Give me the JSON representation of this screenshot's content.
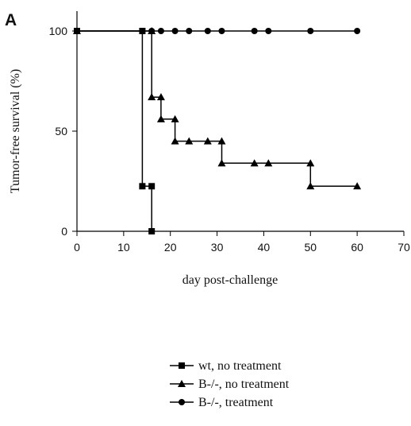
{
  "chart_data": {
    "type": "line",
    "step": true,
    "panel_label": "A",
    "title": "",
    "xlabel": "day post-challenge",
    "ylabel": "Tumor-free survival (%)",
    "xlim": [
      0,
      70
    ],
    "ylim": [
      0,
      100
    ],
    "xticks": [
      0,
      10,
      20,
      30,
      40,
      50,
      60,
      70
    ],
    "yticks": [
      0,
      50,
      100
    ],
    "grid": false,
    "legend_position": "bottom-center",
    "series": [
      {
        "name": "wt, no treatment",
        "marker": "square",
        "color": "#000000",
        "points": [
          [
            0,
            100
          ],
          [
            14,
            100
          ],
          [
            14,
            22.5
          ],
          [
            16,
            22.5
          ],
          [
            16,
            0
          ]
        ]
      },
      {
        "name": "B-/-, no treatment",
        "marker": "triangle",
        "color": "#000000",
        "points": [
          [
            0,
            100
          ],
          [
            16,
            100
          ],
          [
            16,
            67
          ],
          [
            18,
            67
          ],
          [
            18,
            56
          ],
          [
            21,
            56
          ],
          [
            21,
            45
          ],
          [
            24,
            45
          ],
          [
            28,
            45
          ],
          [
            31,
            45
          ],
          [
            31,
            34
          ],
          [
            38,
            34
          ],
          [
            41,
            34
          ],
          [
            50,
            34
          ],
          [
            50,
            22.5
          ],
          [
            60,
            22.5
          ]
        ]
      },
      {
        "name": "B-/-, treatment",
        "marker": "circle",
        "color": "#000000",
        "points": [
          [
            0,
            100
          ],
          [
            16,
            100
          ],
          [
            18,
            100
          ],
          [
            21,
            100
          ],
          [
            24,
            100
          ],
          [
            28,
            100
          ],
          [
            31,
            100
          ],
          [
            38,
            100
          ],
          [
            41,
            100
          ],
          [
            50,
            100
          ],
          [
            60,
            100
          ]
        ]
      }
    ]
  }
}
